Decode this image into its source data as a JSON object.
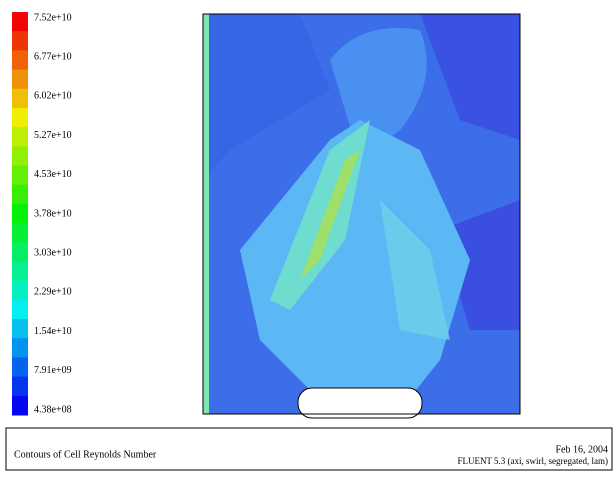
{
  "colorbar": {
    "labels": [
      "7.52e+10",
      "6.77e+10",
      "6.02e+10",
      "5.27e+10",
      "4.53e+10",
      "3.78e+10",
      "3.03e+10",
      "2.29e+10",
      "1.54e+10",
      "7.91e+09",
      "4.38e+08"
    ]
  },
  "footer": {
    "title": "Contours of Cell Reynolds Number",
    "date": "Feb 16, 2004",
    "version": "FLUENT 5.3 (axi, swirl, segregated, lam)"
  }
}
